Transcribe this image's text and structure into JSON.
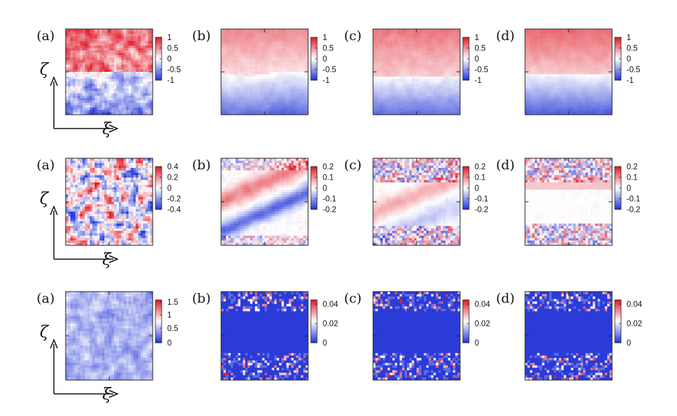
{
  "axes": {
    "horizontal": "ξ",
    "vertical": "ζ"
  },
  "colormap": {
    "negative": "#2a3bd8",
    "zero": "#ffffff",
    "positive": "#e0202e"
  },
  "chart_data": [
    {
      "type": "heatmap",
      "panel": "(a)",
      "row": 1,
      "colorbar_ticks": [
        "1",
        "0.5",
        "0",
        "-0.5",
        "-1"
      ],
      "zlim": [
        -1,
        1
      ],
      "pattern": "top positive (~0.6), bottom negative (~-0.5), noisy"
    },
    {
      "type": "heatmap",
      "panel": "(b)",
      "row": 1,
      "colorbar_ticks": [
        "1",
        "0.5",
        "0",
        "-0.5",
        "-1"
      ],
      "zlim": [
        -1,
        1
      ],
      "pattern": "smooth: top ~0.3, bottom ~-0.6, zero line slightly above middle"
    },
    {
      "type": "heatmap",
      "panel": "(c)",
      "row": 1,
      "colorbar_ticks": [
        "1",
        "0.5",
        "0",
        "-0.5",
        "-1"
      ],
      "zlim": [
        -1,
        1
      ],
      "pattern": "smooth: top ~0.4, bottom ~-0.6"
    },
    {
      "type": "heatmap",
      "panel": "(d)",
      "row": 1,
      "colorbar_ticks": [
        "1",
        "0.5",
        "0",
        "-0.5",
        "-1"
      ],
      "zlim": [
        -1,
        1
      ],
      "pattern": "smooth: top ~0.5, bottom ~-0.7"
    },
    {
      "type": "heatmap",
      "panel": "(a)",
      "row": 2,
      "colorbar_ticks": [
        "0.4",
        "0.2",
        "0",
        "-0.2",
        "-0.4"
      ],
      "zlim": [
        -0.4,
        0.4
      ],
      "pattern": "random noise ±0.4"
    },
    {
      "type": "heatmap",
      "panel": "(b)",
      "row": 2,
      "colorbar_ticks": [
        "0.2",
        "0.1",
        "0",
        "-0.1",
        "-0.2"
      ],
      "zlim": [
        -0.2,
        0.2
      ],
      "pattern": "diagonal bands, red upper band, blue lower band"
    },
    {
      "type": "heatmap",
      "panel": "(c)",
      "row": 2,
      "colorbar_ticks": [
        "0.2",
        "0.1",
        "0",
        "-0.1",
        "-0.2"
      ],
      "zlim": [
        -0.2,
        0.2
      ],
      "pattern": "weak diagonal bands, noisy top and bottom edges"
    },
    {
      "type": "heatmap",
      "panel": "(d)",
      "row": 2,
      "colorbar_ticks": [
        "0.2",
        "0.1",
        "0",
        "-0.1",
        "-0.2"
      ],
      "zlim": [
        -0.2,
        0.2
      ],
      "pattern": "near zero in middle, noise at top and bottom"
    },
    {
      "type": "heatmap",
      "panel": "(a)",
      "row": 3,
      "colorbar_ticks": [
        "1.5",
        "1",
        "0.5",
        "0"
      ],
      "zlim": [
        0,
        1.6
      ],
      "pattern": "mostly ~0.5 with mild noise"
    },
    {
      "type": "heatmap",
      "panel": "(b)",
      "row": 3,
      "colorbar_ticks": [
        "0.04",
        "0.02",
        "0"
      ],
      "zlim": [
        0,
        0.045
      ],
      "pattern": "zero in middle, sparse peaks near top and bottom edges"
    },
    {
      "type": "heatmap",
      "panel": "(c)",
      "row": 3,
      "colorbar_ticks": [
        "0.04",
        "0.02",
        "0"
      ],
      "zlim": [
        0,
        0.045
      ],
      "pattern": "zero in middle, peaks near top and bottom edges"
    },
    {
      "type": "heatmap",
      "panel": "(d)",
      "row": 3,
      "colorbar_ticks": [
        "0.04",
        "0.02",
        "0"
      ],
      "zlim": [
        0,
        0.045
      ],
      "pattern": "zero in middle, sparse peaks near top and bottom edges"
    }
  ]
}
